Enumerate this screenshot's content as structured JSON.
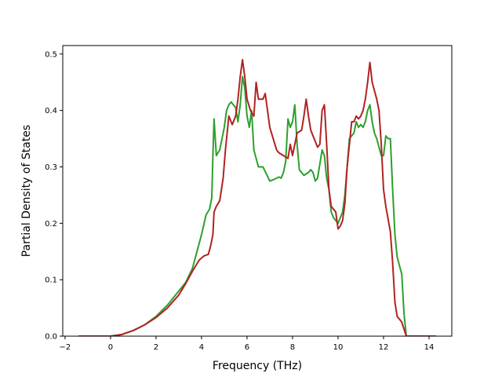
{
  "chart_data": {
    "type": "line",
    "title": "",
    "xlabel": "Frequency (THz)",
    "ylabel": "Partial Density of States",
    "xlim": [
      -2.1,
      15.0
    ],
    "ylim": [
      0.0,
      0.515
    ],
    "xticks": [
      -2,
      0,
      2,
      4,
      6,
      8,
      10,
      12,
      14
    ],
    "xtick_labels": [
      "−2",
      "0",
      "2",
      "4",
      "6",
      "8",
      "10",
      "12",
      "14"
    ],
    "yticks": [
      0.0,
      0.1,
      0.2,
      0.3,
      0.4,
      0.5
    ],
    "ytick_labels": [
      "0.0",
      "0.1",
      "0.2",
      "0.3",
      "0.4",
      "0.5"
    ],
    "grid": false,
    "legend": "none",
    "series": [
      {
        "color": "#2ca02c",
        "x": [
          -1.4,
          -0.5,
          0.0,
          0.5,
          1.0,
          1.5,
          2.0,
          2.5,
          3.0,
          3.3,
          3.6,
          3.8,
          4.0,
          4.2,
          4.35,
          4.45,
          4.5,
          4.55,
          4.65,
          4.8,
          5.0,
          5.1,
          5.2,
          5.3,
          5.5,
          5.6,
          5.7,
          5.8,
          5.9,
          6.0,
          6.1,
          6.2,
          6.3,
          6.5,
          6.7,
          7.0,
          7.2,
          7.4,
          7.5,
          7.6,
          7.7,
          7.8,
          7.9,
          8.0,
          8.1,
          8.2,
          8.3,
          8.5,
          8.7,
          8.8,
          8.9,
          9.0,
          9.1,
          9.3,
          9.4,
          9.5,
          9.6,
          9.7,
          9.8,
          10.0,
          10.2,
          10.3,
          10.5,
          10.7,
          10.8,
          10.9,
          11.0,
          11.1,
          11.2,
          11.3,
          11.4,
          11.5,
          11.6,
          11.7,
          11.9,
          12.0,
          12.1,
          12.2,
          12.3,
          12.4,
          12.5,
          12.6,
          12.8,
          12.9,
          13.0,
          13.5,
          14.3
        ],
        "y": [
          0.0,
          0.0,
          0.0,
          0.003,
          0.01,
          0.02,
          0.035,
          0.055,
          0.08,
          0.095,
          0.12,
          0.15,
          0.18,
          0.215,
          0.225,
          0.245,
          0.32,
          0.385,
          0.32,
          0.33,
          0.37,
          0.4,
          0.41,
          0.415,
          0.405,
          0.38,
          0.41,
          0.46,
          0.44,
          0.39,
          0.37,
          0.4,
          0.33,
          0.3,
          0.3,
          0.275,
          0.278,
          0.282,
          0.28,
          0.29,
          0.31,
          0.385,
          0.37,
          0.38,
          0.41,
          0.34,
          0.295,
          0.285,
          0.29,
          0.295,
          0.29,
          0.275,
          0.28,
          0.33,
          0.32,
          0.28,
          0.26,
          0.22,
          0.21,
          0.2,
          0.22,
          0.25,
          0.35,
          0.36,
          0.38,
          0.37,
          0.375,
          0.37,
          0.38,
          0.4,
          0.41,
          0.38,
          0.36,
          0.35,
          0.32,
          0.32,
          0.355,
          0.35,
          0.35,
          0.26,
          0.18,
          0.14,
          0.11,
          0.04,
          0.0,
          0.0,
          0.0
        ]
      },
      {
        "color": "#b22222",
        "x": [
          -1.4,
          -0.5,
          0.0,
          0.5,
          1.0,
          1.5,
          2.0,
          2.5,
          3.0,
          3.3,
          3.6,
          3.9,
          4.1,
          4.3,
          4.4,
          4.5,
          4.55,
          4.65,
          4.8,
          4.95,
          5.05,
          5.2,
          5.35,
          5.5,
          5.6,
          5.7,
          5.8,
          5.9,
          6.0,
          6.15,
          6.3,
          6.4,
          6.5,
          6.7,
          6.8,
          7.0,
          7.3,
          7.4,
          7.6,
          7.8,
          7.9,
          8.0,
          8.2,
          8.4,
          8.5,
          8.6,
          8.7,
          8.8,
          9.0,
          9.1,
          9.2,
          9.3,
          9.4,
          9.5,
          9.6,
          9.7,
          9.9,
          10.0,
          10.1,
          10.2,
          10.3,
          10.4,
          10.6,
          10.7,
          10.8,
          10.9,
          11.0,
          11.1,
          11.2,
          11.3,
          11.4,
          11.5,
          11.7,
          11.8,
          11.9,
          12.0,
          12.1,
          12.3,
          12.4,
          12.5,
          12.6,
          12.8,
          13.0,
          13.5,
          14.3
        ],
        "y": [
          0.0,
          0.0,
          0.0,
          0.003,
          0.01,
          0.02,
          0.033,
          0.05,
          0.073,
          0.093,
          0.115,
          0.135,
          0.142,
          0.145,
          0.16,
          0.18,
          0.22,
          0.23,
          0.24,
          0.28,
          0.33,
          0.39,
          0.375,
          0.39,
          0.42,
          0.46,
          0.49,
          0.46,
          0.42,
          0.4,
          0.39,
          0.45,
          0.42,
          0.42,
          0.43,
          0.37,
          0.33,
          0.325,
          0.32,
          0.315,
          0.34,
          0.32,
          0.36,
          0.365,
          0.39,
          0.42,
          0.39,
          0.365,
          0.345,
          0.335,
          0.34,
          0.4,
          0.41,
          0.34,
          0.26,
          0.23,
          0.22,
          0.19,
          0.195,
          0.205,
          0.235,
          0.3,
          0.38,
          0.38,
          0.39,
          0.385,
          0.39,
          0.4,
          0.42,
          0.45,
          0.485,
          0.45,
          0.42,
          0.4,
          0.34,
          0.26,
          0.23,
          0.185,
          0.13,
          0.06,
          0.035,
          0.025,
          0.0,
          0.0,
          0.0
        ]
      }
    ]
  }
}
